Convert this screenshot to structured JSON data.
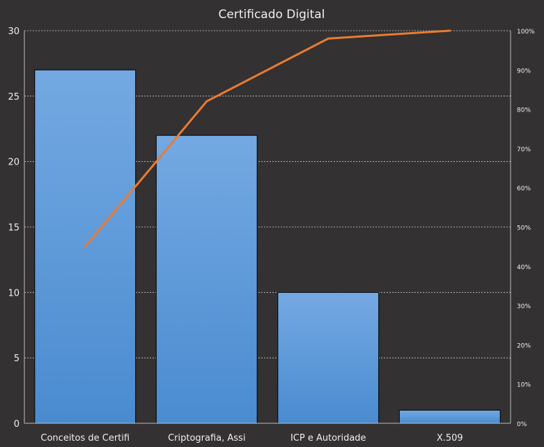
{
  "chart_data": {
    "type": "bar",
    "title": "Certificado Digital",
    "categories": [
      "Conceitos de Certifi",
      "Criptografia, Assi",
      "ICP e Autoridade",
      "X.509"
    ],
    "series": [
      {
        "type": "bar",
        "values": [
          27,
          22,
          10,
          1
        ]
      },
      {
        "type": "line",
        "axis": "secondary",
        "values": [
          45,
          82,
          98,
          100
        ]
      }
    ],
    "ylim": [
      0,
      30
    ],
    "y_ticks": [
      "0",
      "5",
      "10",
      "15",
      "20",
      "25",
      "30"
    ],
    "y2lim": [
      0,
      100
    ],
    "y2_ticks": [
      "0%",
      "10%",
      "20%",
      "30%",
      "40%",
      "50%",
      "60%",
      "70%",
      "80%",
      "90%",
      "100%"
    ],
    "grid": true,
    "colors": {
      "background": "#333131",
      "bar": "#5593d6",
      "bar_light": "#74a9e2",
      "line": "#ea7b32",
      "text": "#f0f0f0",
      "grid": "#cfcfcf"
    }
  }
}
